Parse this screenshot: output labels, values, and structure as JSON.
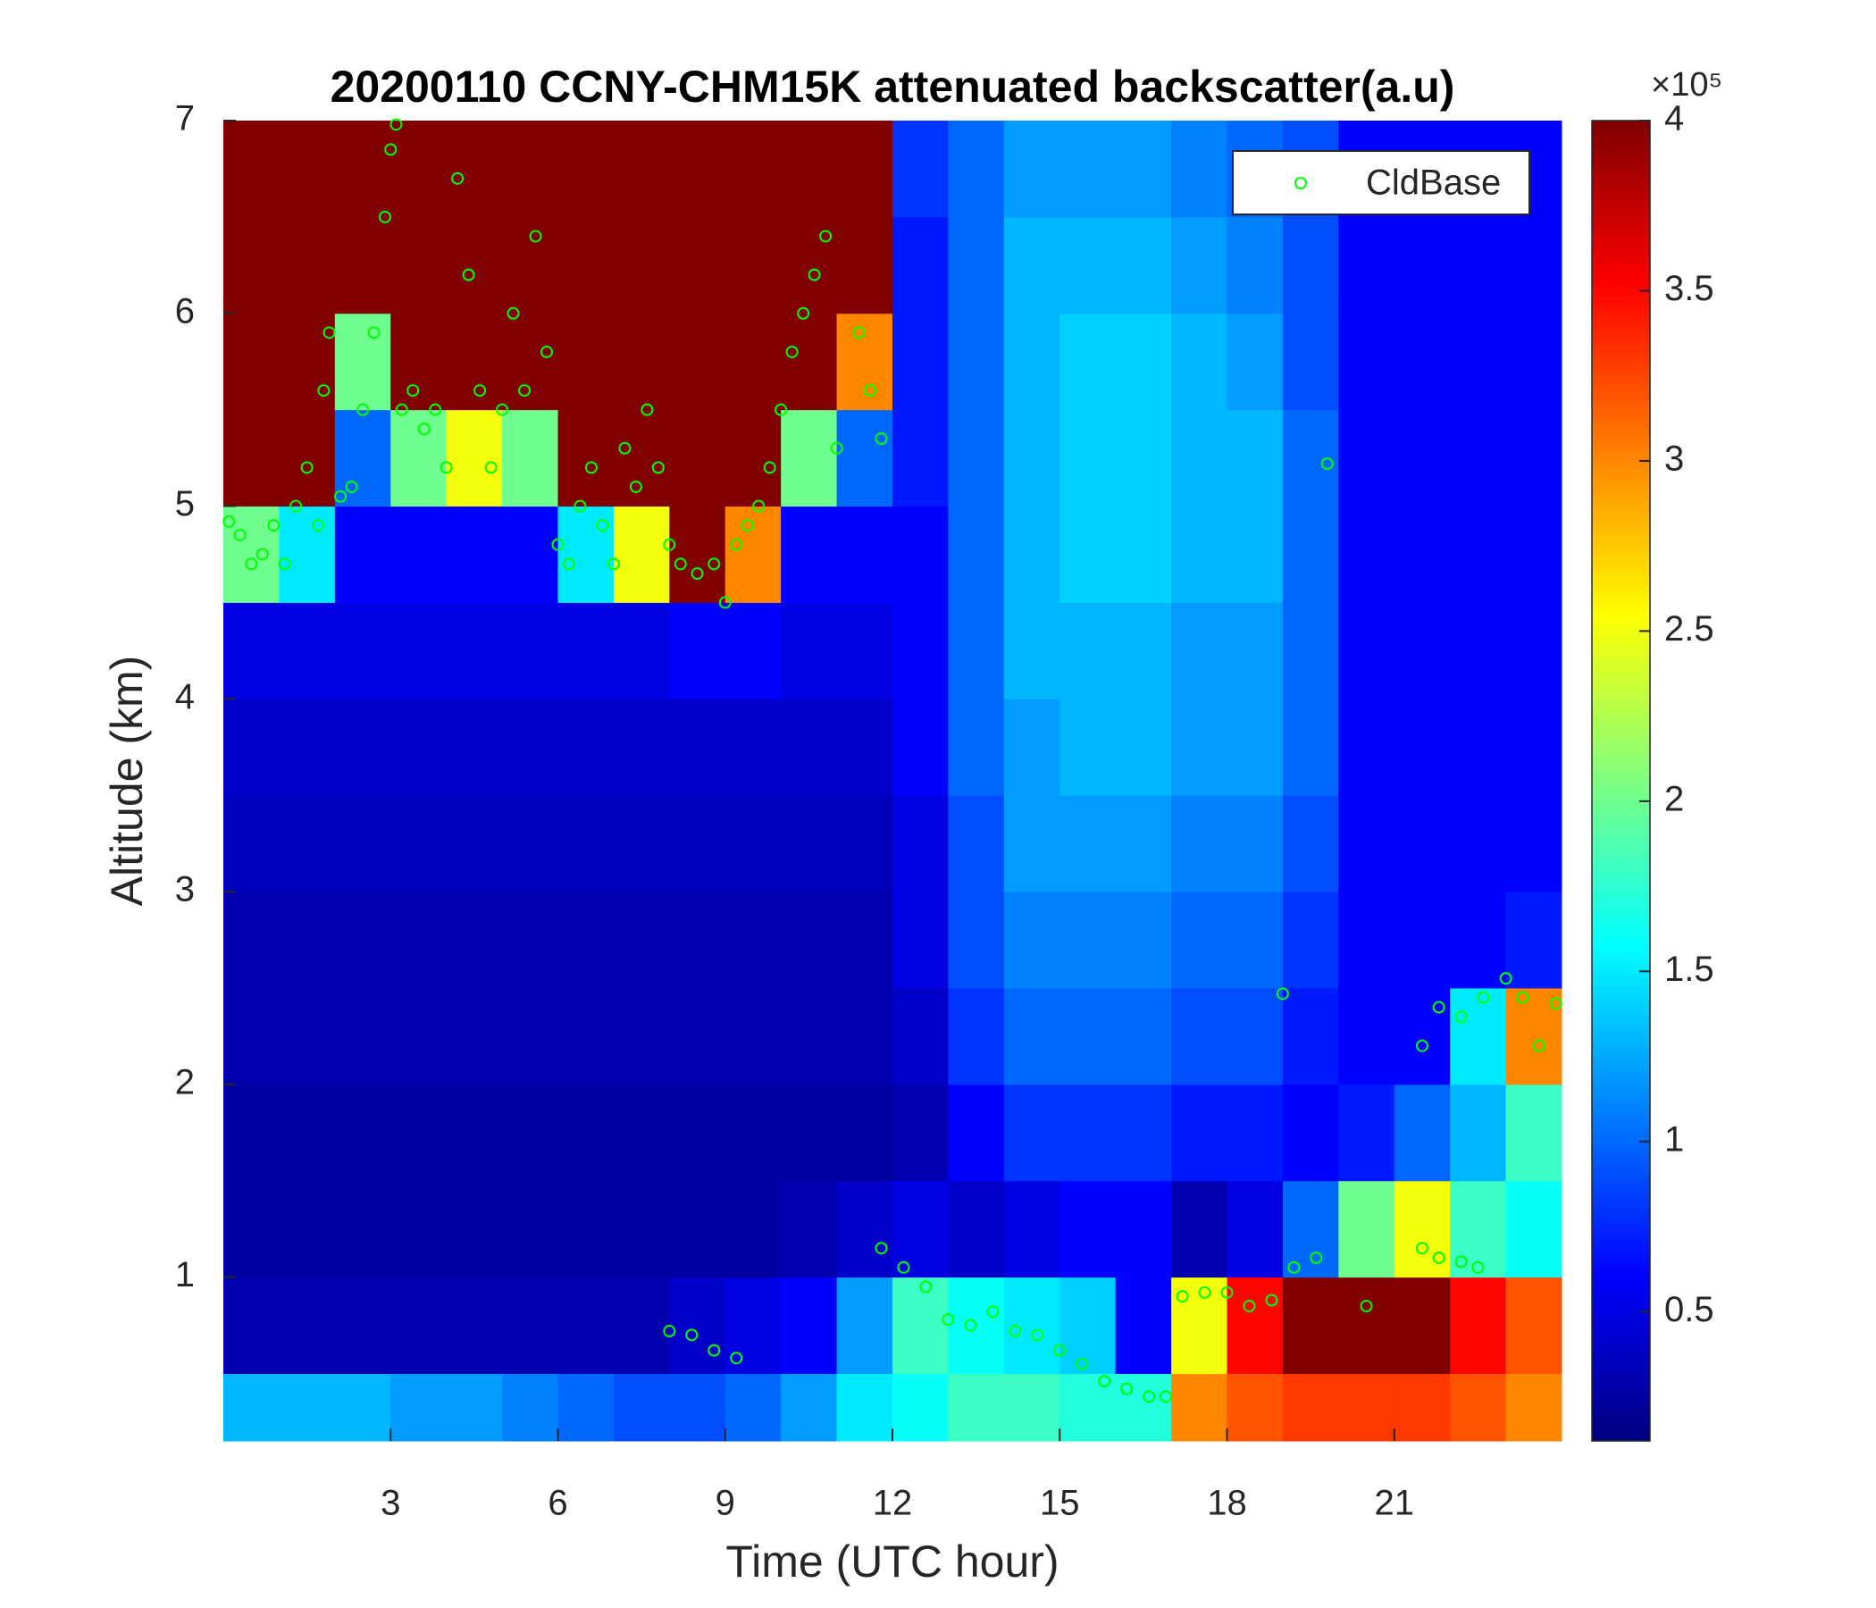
{
  "chart_data": {
    "type": "heatmap",
    "title": "20200110 CCNY-CHM15K attenuated backscatter(a.u)",
    "x_label": "Time (UTC hour)",
    "y_label": "Altitude (km)",
    "colorbar_label": "×10⁵",
    "colormap": "jet",
    "xlim": [
      0,
      24
    ],
    "ylim": [
      0.15,
      7
    ],
    "xticks": [
      3,
      6,
      9,
      12,
      15,
      18,
      21
    ],
    "yticks": [
      1,
      2,
      3,
      4,
      5,
      6,
      7
    ],
    "clim": [
      0.12,
      4
    ],
    "cticks": [
      0.5,
      1,
      1.5,
      2,
      2.5,
      3,
      3.5,
      4
    ],
    "x_edges": [
      0,
      1,
      2,
      3,
      4,
      5,
      6,
      7,
      8,
      9,
      10,
      11,
      12,
      13,
      14,
      15,
      16,
      17,
      18,
      19,
      20,
      21,
      22,
      23,
      24
    ],
    "y_edges": [
      0.15,
      0.5,
      1,
      1.5,
      2,
      2.5,
      3,
      3.5,
      4,
      4.5,
      5,
      5.5,
      6,
      6.5,
      7
    ],
    "values": [
      [
        1.3,
        0.3,
        0.25,
        0.25,
        0.3,
        0.3,
        0.35,
        0.4,
        0.5,
        2.0,
        4,
        4,
        4,
        4
      ],
      [
        1.3,
        0.3,
        0.25,
        0.25,
        0.3,
        0.3,
        0.35,
        0.4,
        0.5,
        1.5,
        4,
        4,
        4,
        4
      ],
      [
        1.3,
        0.3,
        0.25,
        0.25,
        0.3,
        0.3,
        0.35,
        0.4,
        0.5,
        0.6,
        1.0,
        2.0,
        4,
        4
      ],
      [
        1.2,
        0.3,
        0.25,
        0.25,
        0.3,
        0.3,
        0.35,
        0.4,
        0.5,
        0.6,
        2.0,
        4,
        4,
        4
      ],
      [
        1.2,
        0.3,
        0.25,
        0.25,
        0.3,
        0.3,
        0.35,
        0.4,
        0.5,
        0.6,
        2.5,
        4,
        4,
        4
      ],
      [
        1.1,
        0.3,
        0.25,
        0.25,
        0.3,
        0.3,
        0.35,
        0.4,
        0.5,
        0.6,
        2.0,
        4,
        4,
        4
      ],
      [
        1.0,
        0.3,
        0.25,
        0.25,
        0.3,
        0.3,
        0.35,
        0.4,
        0.5,
        1.5,
        4,
        4,
        4,
        4
      ],
      [
        0.9,
        0.3,
        0.25,
        0.25,
        0.3,
        0.3,
        0.35,
        0.4,
        0.5,
        2.5,
        4,
        4,
        4,
        4
      ],
      [
        0.9,
        0.4,
        0.25,
        0.25,
        0.3,
        0.3,
        0.35,
        0.4,
        0.6,
        4,
        4,
        4,
        4,
        4
      ],
      [
        1.0,
        0.5,
        0.25,
        0.25,
        0.3,
        0.3,
        0.35,
        0.4,
        0.6,
        3,
        4,
        4,
        4,
        4
      ],
      [
        1.2,
        0.6,
        0.3,
        0.25,
        0.3,
        0.3,
        0.35,
        0.4,
        0.5,
        0.6,
        2.0,
        4,
        4,
        4
      ],
      [
        1.5,
        1.2,
        0.4,
        0.25,
        0.3,
        0.3,
        0.35,
        0.4,
        0.5,
        0.6,
        1.0,
        3.0,
        4,
        4
      ],
      [
        1.6,
        1.8,
        0.5,
        0.3,
        0.4,
        0.5,
        0.5,
        0.6,
        0.6,
        0.6,
        0.7,
        0.7,
        0.7,
        0.8
      ],
      [
        1.8,
        1.6,
        0.4,
        0.6,
        0.8,
        0.9,
        0.9,
        1.0,
        1.0,
        1.0,
        1.0,
        1.0,
        1.0,
        1.0
      ],
      [
        1.8,
        1.5,
        0.5,
        0.8,
        1.0,
        1.1,
        1.2,
        1.2,
        1.3,
        1.3,
        1.3,
        1.3,
        1.3,
        1.2
      ],
      [
        1.7,
        1.4,
        0.6,
        0.8,
        1.0,
        1.1,
        1.2,
        1.3,
        1.3,
        1.4,
        1.4,
        1.4,
        1.3,
        1.2
      ],
      [
        1.7,
        0.6,
        0.6,
        0.8,
        1.0,
        1.1,
        1.2,
        1.3,
        1.3,
        1.4,
        1.4,
        1.4,
        1.3,
        1.2
      ],
      [
        3.0,
        2.5,
        0.3,
        0.7,
        0.9,
        1.0,
        1.1,
        1.2,
        1.2,
        1.3,
        1.3,
        1.3,
        1.2,
        1.1
      ],
      [
        3.2,
        3.5,
        0.5,
        0.7,
        0.9,
        1.0,
        1.1,
        1.2,
        1.2,
        1.3,
        1.3,
        1.2,
        1.1,
        1.0
      ],
      [
        3.3,
        4,
        1.0,
        0.6,
        0.7,
        0.8,
        0.9,
        1.0,
        1.0,
        1.0,
        1.0,
        0.9,
        0.9,
        0.9
      ],
      [
        3.3,
        4,
        2.0,
        0.7,
        0.6,
        0.6,
        0.6,
        0.6,
        0.6,
        0.6,
        0.6,
        0.6,
        0.6,
        0.6
      ],
      [
        3.3,
        4,
        2.5,
        1.0,
        0.6,
        0.6,
        0.6,
        0.6,
        0.6,
        0.6,
        0.6,
        0.6,
        0.6,
        0.6
      ],
      [
        3.2,
        3.5,
        1.8,
        1.3,
        1.5,
        0.6,
        0.6,
        0.6,
        0.6,
        0.6,
        0.6,
        0.6,
        0.6,
        0.6
      ],
      [
        3.0,
        3.2,
        1.6,
        1.8,
        3.0,
        0.7,
        0.6,
        0.6,
        0.6,
        0.6,
        0.6,
        0.6,
        0.6,
        0.6
      ]
    ],
    "series": [
      {
        "name": "CldBase",
        "type": "scatter",
        "color": "#00ff00",
        "x": [
          0.1,
          0.3,
          0.5,
          0.7,
          0.9,
          1.1,
          1.3,
          1.5,
          1.7,
          1.8,
          1.9,
          2.1,
          2.3,
          2.5,
          2.7,
          2.9,
          3.0,
          3.1,
          3.2,
          3.4,
          3.6,
          3.8,
          4.0,
          4.2,
          4.4,
          4.6,
          4.8,
          5.0,
          5.2,
          5.4,
          5.6,
          5.8,
          6.0,
          6.2,
          6.4,
          6.6,
          6.8,
          7.0,
          7.2,
          7.4,
          7.6,
          7.8,
          8.0,
          8.2,
          8.5,
          8.8,
          9.0,
          9.2,
          9.4,
          9.6,
          9.8,
          10.0,
          10.2,
          10.4,
          10.6,
          10.8,
          11.0,
          11.4,
          11.6,
          11.8,
          8.0,
          8.4,
          8.8,
          9.2,
          11.8,
          12.2,
          12.6,
          13.0,
          13.4,
          13.8,
          14.2,
          14.6,
          15.0,
          15.4,
          15.8,
          16.2,
          16.6,
          16.9,
          17.2,
          17.6,
          18.0,
          18.4,
          18.8,
          19.2,
          19.6,
          19.0,
          19.8,
          20.5,
          21.5,
          21.8,
          22.2,
          22.5,
          21.5,
          21.8,
          22.2,
          22.6,
          23.0,
          23.3,
          23.6,
          23.9
        ],
        "y": [
          4.92,
          4.85,
          4.7,
          4.75,
          4.9,
          4.7,
          5.0,
          5.2,
          4.9,
          5.6,
          5.9,
          5.05,
          5.1,
          5.5,
          5.9,
          6.5,
          6.85,
          6.98,
          5.5,
          5.6,
          5.4,
          5.5,
          5.2,
          6.7,
          6.2,
          5.6,
          5.2,
          5.5,
          6.0,
          5.6,
          6.4,
          5.8,
          4.8,
          4.7,
          5.0,
          5.2,
          4.9,
          4.7,
          5.3,
          5.1,
          5.5,
          5.2,
          4.8,
          4.7,
          4.65,
          4.7,
          4.5,
          4.8,
          4.9,
          5.0,
          5.2,
          5.5,
          5.8,
          6.0,
          6.2,
          6.4,
          5.3,
          5.9,
          5.6,
          5.35,
          0.72,
          0.7,
          0.62,
          0.58,
          1.15,
          1.05,
          0.95,
          0.78,
          0.75,
          0.82,
          0.72,
          0.7,
          0.62,
          0.55,
          0.46,
          0.42,
          0.38,
          0.38,
          0.9,
          0.92,
          0.92,
          0.85,
          0.88,
          1.05,
          1.1,
          2.47,
          5.22,
          0.85,
          1.15,
          1.1,
          1.08,
          1.05,
          2.2,
          2.4,
          2.35,
          2.45,
          2.55,
          2.45,
          2.2,
          2.42
        ]
      }
    ],
    "legend": "northeast"
  }
}
